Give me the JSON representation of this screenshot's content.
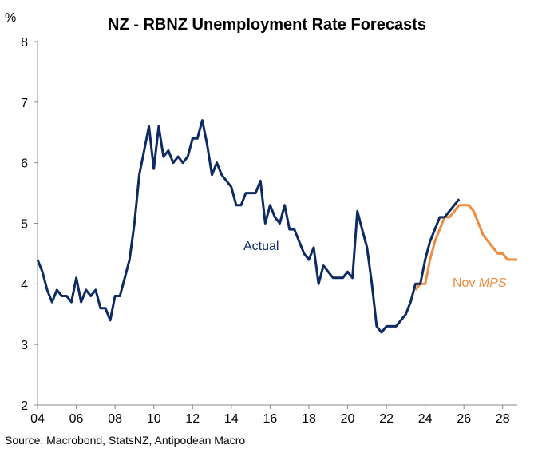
{
  "chart_data": {
    "type": "line",
    "title": "NZ - RBNZ Unemployment Rate Forecasts",
    "ylabel": "%",
    "xlabel": "",
    "ylim": [
      2,
      8
    ],
    "xlim": [
      2004,
      2028.75
    ],
    "yticks": [
      "2",
      "3",
      "4",
      "5",
      "6",
      "7",
      "8"
    ],
    "xticks": [
      {
        "value": 2004,
        "label": "04"
      },
      {
        "value": 2006,
        "label": "06"
      },
      {
        "value": 2008,
        "label": "08"
      },
      {
        "value": 2010,
        "label": "10"
      },
      {
        "value": 2012,
        "label": "12"
      },
      {
        "value": 2014,
        "label": "14"
      },
      {
        "value": 2016,
        "label": "16"
      },
      {
        "value": 2018,
        "label": "18"
      },
      {
        "value": 2020,
        "label": "20"
      },
      {
        "value": 2022,
        "label": "22"
      },
      {
        "value": 2024,
        "label": "24"
      },
      {
        "value": 2026,
        "label": "26"
      },
      {
        "value": 2028,
        "label": "28"
      }
    ],
    "grid": false,
    "series": [
      {
        "name": "Actual",
        "color": "#0d2a63",
        "x_start": 2004.0,
        "x_step": 0.25,
        "values": [
          4.4,
          4.2,
          3.9,
          3.7,
          3.9,
          3.8,
          3.8,
          3.7,
          4.1,
          3.7,
          3.9,
          3.8,
          3.9,
          3.6,
          3.6,
          3.4,
          3.8,
          3.8,
          4.1,
          4.4,
          5.0,
          5.8,
          6.2,
          6.6,
          5.9,
          6.6,
          6.1,
          6.2,
          6.0,
          6.1,
          6.0,
          6.1,
          6.4,
          6.4,
          6.7,
          6.3,
          5.8,
          6.0,
          5.8,
          5.7,
          5.6,
          5.3,
          5.3,
          5.5,
          5.5,
          5.5,
          5.7,
          5.0,
          5.3,
          5.1,
          5.0,
          5.3,
          4.9,
          4.9,
          4.7,
          4.5,
          4.4,
          4.6,
          4.0,
          4.3,
          4.2,
          4.1,
          4.1,
          4.1,
          4.2,
          4.1,
          5.2,
          4.9,
          4.6,
          4.0,
          3.3,
          3.2,
          3.3,
          3.3,
          3.3,
          3.4,
          3.5,
          3.7,
          4.0,
          4.0,
          4.4,
          4.7,
          4.9,
          5.1,
          5.1,
          5.2,
          5.3,
          5.4
        ]
      },
      {
        "name": "Nov MPS",
        "name_parts": [
          "Nov ",
          "MPS"
        ],
        "color": "#f08a3c",
        "x_start": 2023.5,
        "x_step": 0.25,
        "values": [
          3.9,
          4.0,
          4.0,
          4.4,
          4.7,
          4.9,
          5.1,
          5.1,
          5.2,
          5.3,
          5.3,
          5.3,
          5.2,
          5.0,
          4.8,
          4.7,
          4.6,
          4.5,
          4.5,
          4.4,
          4.4,
          4.4
        ]
      }
    ]
  },
  "source": "Source: Macrobond, StatsNZ, Antipodean Macro"
}
